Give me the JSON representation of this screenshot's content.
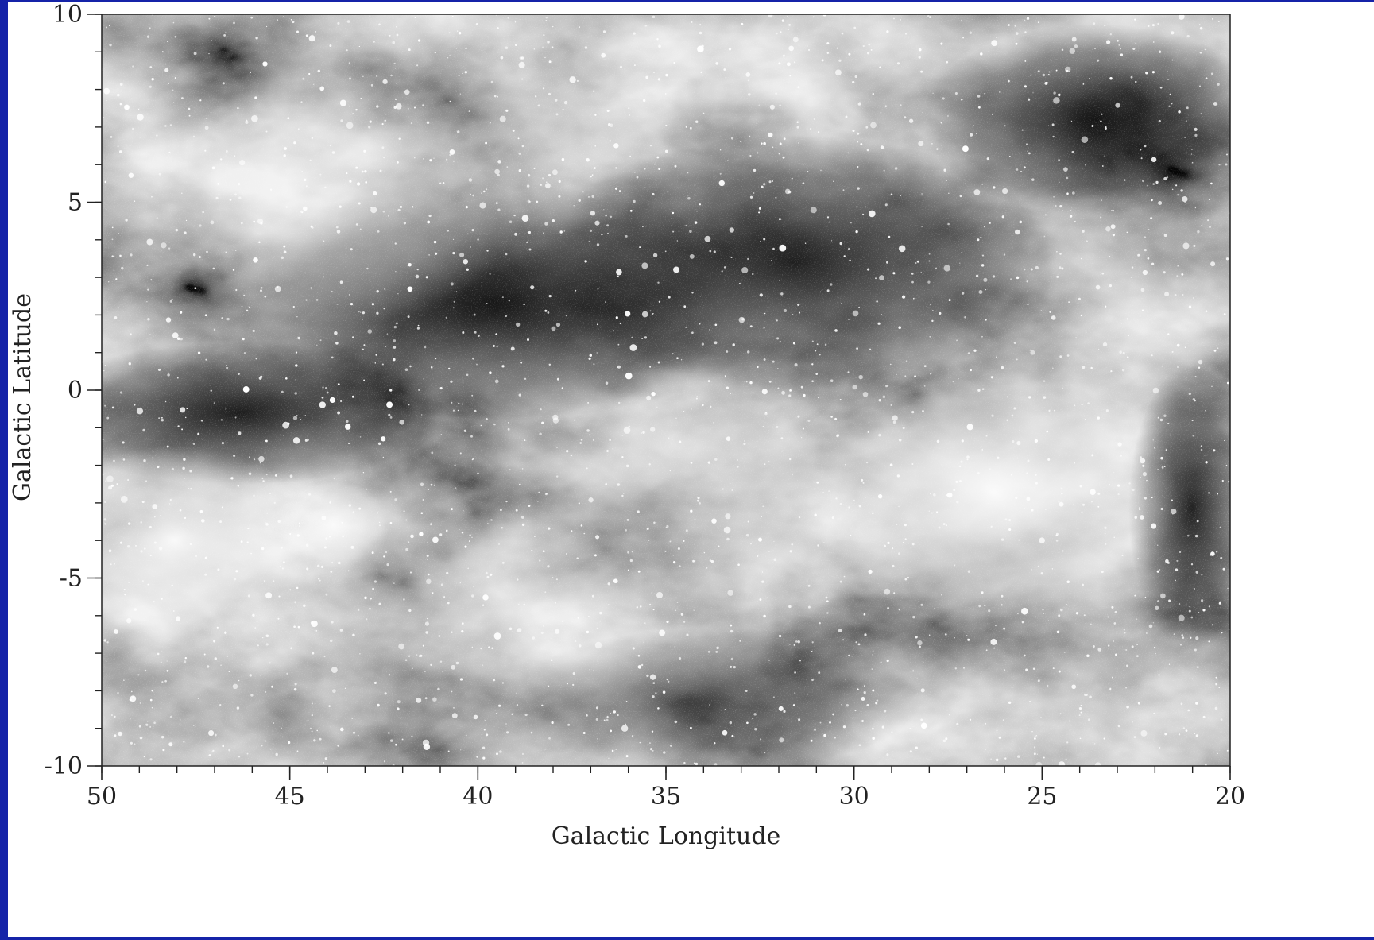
{
  "colors": {
    "frame": "#1523a8",
    "panel": "#ffffff",
    "image_dark": "#111111",
    "image_bright": "#f4f4f4",
    "axis": "#222222"
  },
  "image_content": {
    "subject": "grayscale star field with dark dust lanes and bright diffuse clouds"
  },
  "chart_data": {
    "type": "heatmap",
    "title": "",
    "xlabel": "Galactic Longitude",
    "ylabel": "Galactic Latitude",
    "xlim": [
      50,
      20
    ],
    "ylim": [
      -10,
      10
    ],
    "x_ticks": [
      50,
      45,
      40,
      35,
      30,
      25,
      20
    ],
    "y_ticks": [
      10,
      5,
      0,
      -5,
      -10
    ],
    "x_minor_step": 1,
    "y_minor_step": 1,
    "grid": false
  }
}
